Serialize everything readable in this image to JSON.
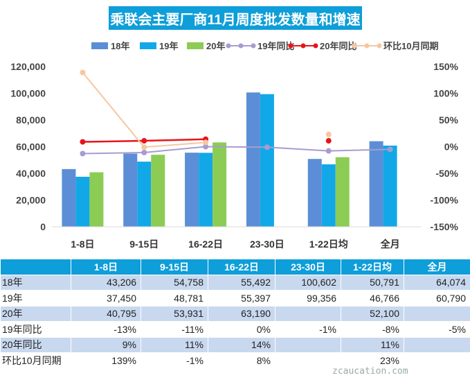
{
  "title": "乘联会主要厂商11月周度批发数量和增速",
  "chart_data": {
    "type": "bar",
    "categories": [
      "1-8日",
      "9-15日",
      "16-22日",
      "23-30日",
      "1-22日均",
      "全月"
    ],
    "series": [
      {
        "name": "18年",
        "kind": "bar",
        "color": "#5b8ed6",
        "values": [
          43206,
          54758,
          55492,
          100602,
          50791,
          64074
        ]
      },
      {
        "name": "19年",
        "kind": "bar",
        "color": "#12a8e8",
        "values": [
          37450,
          48781,
          55397,
          99356,
          46766,
          60790
        ]
      },
      {
        "name": "20年",
        "kind": "bar",
        "color": "#8ccc55",
        "values": [
          40795,
          53931,
          63190,
          null,
          52100,
          null
        ]
      },
      {
        "name": "19年同比",
        "kind": "line",
        "axis": "right",
        "color": "#a89bd0",
        "values": [
          -13,
          -11,
          0,
          -1,
          -8,
          -5
        ]
      },
      {
        "name": "20年同比",
        "kind": "line",
        "axis": "right",
        "color": "#e8141a",
        "values": [
          9,
          11,
          14,
          null,
          11,
          null
        ]
      },
      {
        "name": "环比10月同期",
        "kind": "line",
        "axis": "right",
        "color": "#f5c7a0",
        "values": [
          139,
          -1,
          8,
          null,
          23,
          null
        ]
      }
    ],
    "ylim": [
      0,
      120000
    ],
    "yticks": [
      "0",
      "20,000",
      "40,000",
      "60,000",
      "80,000",
      "100,000",
      "120,000"
    ],
    "y2lim": [
      -150,
      150
    ],
    "y2ticks": [
      "-150%",
      "-100%",
      "-50%",
      "0%",
      "50%",
      "100%",
      "150%"
    ],
    "legend_position": "top"
  },
  "table": {
    "header": [
      "",
      "1-8日",
      "9-15日",
      "16-22日",
      "23-30日",
      "1-22日均",
      "全月"
    ],
    "rows": [
      {
        "label": "18年",
        "cells": [
          "43,206",
          "54,758",
          "55,492",
          "100,602",
          "50,791",
          "64,074"
        ]
      },
      {
        "label": "19年",
        "cells": [
          "37,450",
          "48,781",
          "55,397",
          "99,356",
          "46,766",
          "60,790"
        ]
      },
      {
        "label": "20年",
        "cells": [
          "40,795",
          "53,931",
          "63,190",
          "",
          "52,100",
          ""
        ]
      },
      {
        "label": "19年同比",
        "cells": [
          "-13%",
          "-11%",
          "0%",
          "-1%",
          "-8%",
          "-5%"
        ]
      },
      {
        "label": "20年同比",
        "cells": [
          "9%",
          "11%",
          "14%",
          "",
          "11%",
          ""
        ]
      },
      {
        "label": "环比10月同期",
        "cells": [
          "139%",
          "-1%",
          "8%",
          "",
          "23%",
          ""
        ]
      }
    ]
  },
  "watermark": "zcaucation.com"
}
